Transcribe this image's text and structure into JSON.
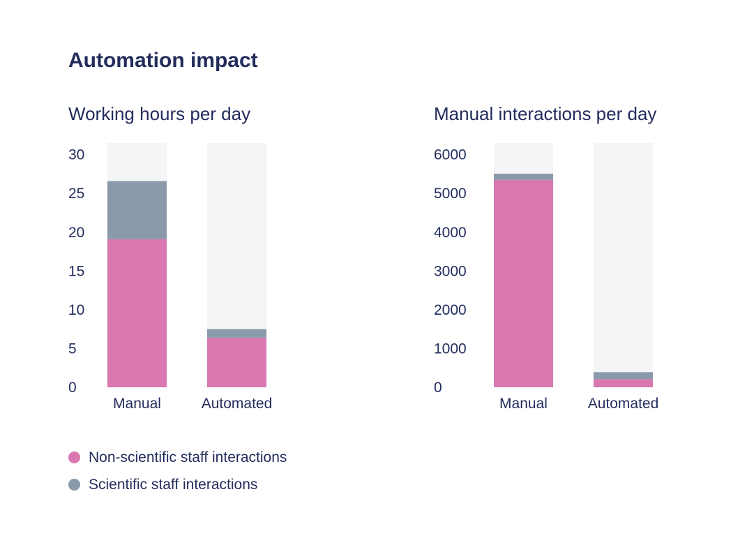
{
  "title": "Automation impact",
  "legend": {
    "items": [
      {
        "label": "Non-scientific staff interactions",
        "color": "#d978b0"
      },
      {
        "label": "Scientific staff interactions",
        "color": "#8a9aab"
      }
    ]
  },
  "colors": {
    "background_bar": "#f4f5f7",
    "text": "#232d5c"
  },
  "chart_data": [
    {
      "type": "bar",
      "stacked": true,
      "title": "Working hours per day",
      "categories": [
        "Manual",
        "Automated"
      ],
      "series": [
        {
          "name": "Non-scientific staff interactions",
          "values": [
            19.1,
            6.4
          ],
          "color": "#d978b0"
        },
        {
          "name": "Scientific staff interactions",
          "values": [
            7.5,
            1.1
          ],
          "color": "#8a9aab"
        }
      ],
      "ylim": [
        0,
        31.5
      ],
      "yticks": [
        0,
        5,
        10,
        15,
        20,
        25,
        30
      ]
    },
    {
      "type": "bar",
      "stacked": true,
      "title": "Manual interactions per day",
      "categories": [
        "Manual",
        "Automated"
      ],
      "series": [
        {
          "name": "Non-scientific staff interactions",
          "values": [
            5350,
            210
          ],
          "color": "#d978b0"
        },
        {
          "name": "Scientific staff interactions",
          "values": [
            160,
            180
          ],
          "color": "#8a9aab"
        }
      ],
      "ylim": [
        0,
        6300
      ],
      "yticks": [
        0,
        1000,
        2000,
        3000,
        4000,
        5000,
        6000
      ]
    }
  ]
}
